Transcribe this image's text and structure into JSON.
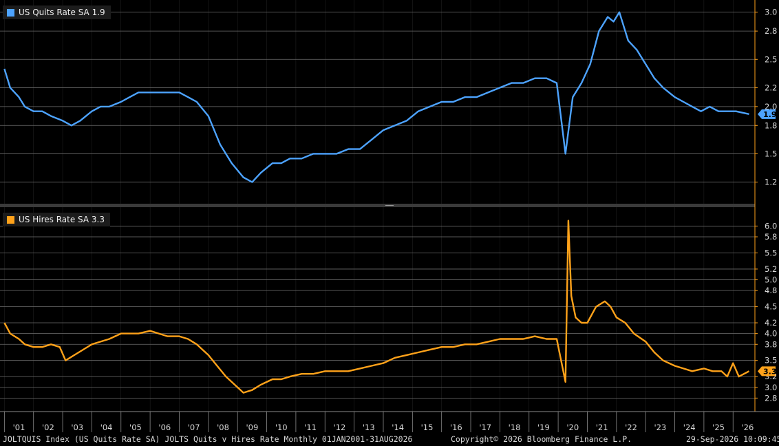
{
  "colors": {
    "quits": "#4da3ff",
    "hires": "#ffa21a",
    "grid": "#6e6e6e",
    "background": "#000000"
  },
  "footer": {
    "left": "JOLTQUIS Index (US Quits Rate SA) JOLTS Quits v Hires Rate Monthly 01JAN2001-31AUG2026",
    "center": "Copyright© 2026 Bloomberg Finance L.P.",
    "right": "29-Sep-2026 10:09:45"
  },
  "chart_data": [
    {
      "type": "line",
      "legend": "US Quits Rate SA 1.9",
      "last_value": "1.9",
      "ylim": [
        1.0,
        3.1
      ],
      "yticks": [
        "1.2",
        "1.5",
        "1.8",
        "2.0",
        "2.2",
        "2.5",
        "2.8",
        "3.0"
      ],
      "xticks": [
        "'01",
        "'02",
        "'03",
        "'04",
        "'05",
        "'06",
        "'07",
        "'08",
        "'09",
        "'10",
        "'11",
        "'12",
        "'13",
        "'14",
        "'15",
        "'16",
        "'17",
        "'18",
        "'19",
        "'20",
        "'21",
        "'22",
        "'23",
        "'24",
        "'25",
        "'26"
      ],
      "x": [
        2001.0,
        2001.2,
        2001.5,
        2001.7,
        2002.0,
        2002.3,
        2002.6,
        2003.0,
        2003.3,
        2003.6,
        2004.0,
        2004.3,
        2004.6,
        2005.0,
        2005.3,
        2005.6,
        2006.0,
        2006.3,
        2006.6,
        2007.0,
        2007.3,
        2007.6,
        2008.0,
        2008.4,
        2008.8,
        2009.2,
        2009.5,
        2009.8,
        2010.2,
        2010.5,
        2010.8,
        2011.2,
        2011.6,
        2012.0,
        2012.4,
        2012.8,
        2013.2,
        2013.6,
        2014.0,
        2014.4,
        2014.8,
        2015.2,
        2015.6,
        2016.0,
        2016.4,
        2016.8,
        2017.2,
        2017.6,
        2018.0,
        2018.4,
        2018.8,
        2019.2,
        2019.6,
        2019.95,
        2020.25,
        2020.5,
        2020.8,
        2021.1,
        2021.4,
        2021.7,
        2021.9,
        2022.1,
        2022.4,
        2022.7,
        2023.0,
        2023.3,
        2023.6,
        2024.0,
        2024.3,
        2024.6,
        2024.9,
        2025.2,
        2025.5,
        2025.8,
        2026.1,
        2026.55
      ],
      "y": [
        2.4,
        2.2,
        2.1,
        2.0,
        1.95,
        1.95,
        1.9,
        1.85,
        1.8,
        1.85,
        1.95,
        2.0,
        2.0,
        2.05,
        2.1,
        2.15,
        2.15,
        2.15,
        2.15,
        2.15,
        2.1,
        2.05,
        1.9,
        1.6,
        1.4,
        1.25,
        1.2,
        1.3,
        1.4,
        1.4,
        1.45,
        1.45,
        1.5,
        1.5,
        1.5,
        1.55,
        1.55,
        1.65,
        1.75,
        1.8,
        1.85,
        1.95,
        2.0,
        2.05,
        2.05,
        2.1,
        2.1,
        2.15,
        2.2,
        2.25,
        2.25,
        2.3,
        2.3,
        2.25,
        1.5,
        2.1,
        2.25,
        2.45,
        2.8,
        2.95,
        2.9,
        3.0,
        2.7,
        2.6,
        2.45,
        2.3,
        2.2,
        2.1,
        2.05,
        2.0,
        1.95,
        2.0,
        1.95,
        1.95,
        1.95,
        1.92
      ]
    },
    {
      "type": "line",
      "legend": "US Hires Rate SA 3.3",
      "last_value": "3.3",
      "ylim": [
        2.6,
        6.3
      ],
      "yticks": [
        "2.8",
        "3.0",
        "3.2",
        "3.5",
        "3.8",
        "4.0",
        "4.2",
        "4.5",
        "4.8",
        "5.0",
        "5.2",
        "5.5",
        "5.8",
        "6.0"
      ],
      "xticks": [
        "'01",
        "'02",
        "'03",
        "'04",
        "'05",
        "'06",
        "'07",
        "'08",
        "'09",
        "'10",
        "'11",
        "'12",
        "'13",
        "'14",
        "'15",
        "'16",
        "'17",
        "'18",
        "'19",
        "'20",
        "'21",
        "'22",
        "'23",
        "'24",
        "'25",
        "'26"
      ],
      "x": [
        2001.0,
        2001.2,
        2001.5,
        2001.7,
        2002.0,
        2002.3,
        2002.6,
        2002.9,
        2003.1,
        2003.4,
        2003.7,
        2004.0,
        2004.3,
        2004.6,
        2005.0,
        2005.3,
        2005.6,
        2006.0,
        2006.3,
        2006.6,
        2007.0,
        2007.3,
        2007.6,
        2008.0,
        2008.3,
        2008.6,
        2009.0,
        2009.2,
        2009.5,
        2009.8,
        2010.2,
        2010.5,
        2010.8,
        2011.2,
        2011.6,
        2012.0,
        2012.4,
        2012.8,
        2013.2,
        2013.6,
        2014.0,
        2014.4,
        2014.8,
        2015.2,
        2015.6,
        2016.0,
        2016.4,
        2016.8,
        2017.2,
        2017.6,
        2018.0,
        2018.4,
        2018.8,
        2019.2,
        2019.6,
        2019.95,
        2020.25,
        2020.35,
        2020.45,
        2020.6,
        2020.8,
        2021.0,
        2021.3,
        2021.6,
        2021.8,
        2022.0,
        2022.3,
        2022.6,
        2023.0,
        2023.3,
        2023.6,
        2024.0,
        2024.3,
        2024.6,
        2025.0,
        2025.3,
        2025.6,
        2025.8,
        2026.0,
        2026.2,
        2026.55
      ],
      "y": [
        4.2,
        4.0,
        3.9,
        3.8,
        3.75,
        3.75,
        3.8,
        3.75,
        3.5,
        3.6,
        3.7,
        3.8,
        3.85,
        3.9,
        4.0,
        4.0,
        4.0,
        4.05,
        4.0,
        3.95,
        3.95,
        3.9,
        3.8,
        3.6,
        3.4,
        3.2,
        3.0,
        2.9,
        2.95,
        3.05,
        3.15,
        3.15,
        3.2,
        3.25,
        3.25,
        3.3,
        3.3,
        3.3,
        3.35,
        3.4,
        3.45,
        3.55,
        3.6,
        3.65,
        3.7,
        3.75,
        3.75,
        3.8,
        3.8,
        3.85,
        3.9,
        3.9,
        3.9,
        3.95,
        3.9,
        3.9,
        3.1,
        6.1,
        4.7,
        4.3,
        4.2,
        4.2,
        4.5,
        4.6,
        4.5,
        4.3,
        4.2,
        4.0,
        3.85,
        3.65,
        3.5,
        3.4,
        3.35,
        3.3,
        3.35,
        3.3,
        3.3,
        3.2,
        3.45,
        3.2,
        3.3
      ]
    }
  ]
}
